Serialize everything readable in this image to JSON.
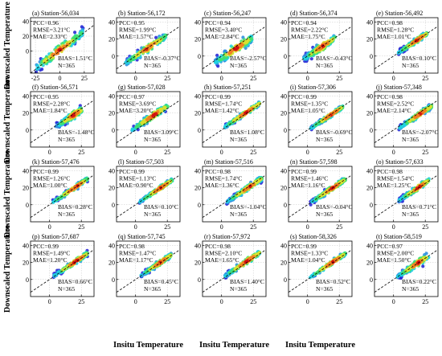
{
  "figure": {
    "x_label": "Insitu Temperature",
    "y_label": "Downscaled Temperature"
  },
  "colors": {
    "identity_line": "#000000",
    "density_scale": [
      "#2a2ad6",
      "#2f8fe0",
      "#20d0e0",
      "#40e070",
      "#d8e030",
      "#f08020",
      "#d01010"
    ]
  },
  "chart_data": [
    {
      "type": "scatter",
      "label": "(a) Station-56,034",
      "xlim": [
        -30,
        35
      ],
      "ylim": [
        -30,
        45
      ],
      "xticks": [
        -25,
        0,
        25
      ],
      "yticks": [
        0,
        20,
        40
      ],
      "stats": {
        "pcc": "PCC=0.96",
        "rmse": "RMSE=3.21°C",
        "mae": "MAE=2.33°C",
        "bias": "BIAS=1.51°C",
        "n": "N=365"
      },
      "cluster": {
        "x_range": [
          -25,
          24
        ],
        "bias": 1.51,
        "spread": 3.2
      }
    },
    {
      "type": "scatter",
      "label": "(b) Station-56,172",
      "xlim": [
        -15,
        35
      ],
      "ylim": [
        -20,
        45
      ],
      "xticks": [
        0,
        25
      ],
      "yticks": [
        0,
        20,
        40
      ],
      "stats": {
        "pcc": "PCC=0.95",
        "rmse": "RMSE=1.99°C",
        "mae": "MAE=1.57°C",
        "bias": "BIAS=-0.37°C",
        "n": "N=365"
      },
      "cluster": {
        "x_range": [
          -8,
          24
        ],
        "bias": -0.37,
        "spread": 2.0
      }
    },
    {
      "type": "scatter",
      "label": "(c) Station-56,247",
      "xlim": [
        -15,
        35
      ],
      "ylim": [
        -20,
        45
      ],
      "xticks": [
        0,
        25
      ],
      "yticks": [
        0,
        20,
        40
      ],
      "stats": {
        "pcc": "PCC=0.94",
        "rmse": "RMSE=3.40°C",
        "mae": "MAE=2.84°C",
        "bias": "BIAS=-2.57°C",
        "n": "N=365"
      },
      "cluster": {
        "x_range": [
          -5,
          24
        ],
        "bias": -2.57,
        "spread": 2.8
      }
    },
    {
      "type": "scatter",
      "label": "(d) Station-56,374",
      "xlim": [
        -15,
        35
      ],
      "ylim": [
        -20,
        45
      ],
      "xticks": [
        0,
        25
      ],
      "yticks": [
        0,
        20,
        40
      ],
      "stats": {
        "pcc": "PCC=0.94",
        "rmse": "RMSE=2.22°C",
        "mae": "MAE=1.75°C",
        "bias": "BIAS=-0.43°C",
        "n": "N=365"
      },
      "cluster": {
        "x_range": [
          -3,
          22
        ],
        "bias": -0.43,
        "spread": 2.2
      }
    },
    {
      "type": "scatter",
      "label": "(e) Station-56,492",
      "xlim": [
        -15,
        35
      ],
      "ylim": [
        -20,
        45
      ],
      "xticks": [
        0,
        25
      ],
      "yticks": [
        0,
        20,
        40
      ],
      "stats": {
        "pcc": "PCC=0.98",
        "rmse": "RMSE=1.28°C",
        "mae": "MAE=1.01°C",
        "bias": "BIAS=0.10°C",
        "n": "N=365"
      },
      "cluster": {
        "x_range": [
          3,
          27
        ],
        "bias": 0.1,
        "spread": 1.3
      }
    },
    {
      "type": "scatter",
      "label": "(f) Station-56,571",
      "xlim": [
        -15,
        35
      ],
      "ylim": [
        -20,
        45
      ],
      "xticks": [
        0,
        25
      ],
      "yticks": [
        0,
        20,
        40
      ],
      "stats": {
        "pcc": "PCC=0.95",
        "rmse": "RMSE=2.28°C",
        "mae": "MAE=1.84°C",
        "bias": "BIAS=-1.48°C",
        "n": "N=365"
      },
      "cluster": {
        "x_range": [
          5,
          26
        ],
        "bias": -1.48,
        "spread": 2.0
      }
    },
    {
      "type": "scatter",
      "label": "(g) Station-57,028",
      "xlim": [
        -15,
        35
      ],
      "ylim": [
        -20,
        45
      ],
      "xticks": [
        0,
        25
      ],
      "yticks": [
        0,
        20,
        40
      ],
      "stats": {
        "pcc": "PCC=0.97",
        "rmse": "RMSE=3.69°C",
        "mae": "MAE=3.20°C",
        "bias": "BIAS=3.09°C",
        "n": "N=365"
      },
      "cluster": {
        "x_range": [
          -3,
          26
        ],
        "bias": 3.09,
        "spread": 1.8
      }
    },
    {
      "type": "scatter",
      "label": "(h) Station-57,251",
      "xlim": [
        -15,
        35
      ],
      "ylim": [
        -20,
        45
      ],
      "xticks": [
        0,
        25
      ],
      "yticks": [
        0,
        20,
        40
      ],
      "stats": {
        "pcc": "PCC=0.99",
        "rmse": "RMSE=1.74°C",
        "mae": "MAE=1.42°C",
        "bias": "BIAS=1.08°C",
        "n": "N=365"
      },
      "cluster": {
        "x_range": [
          1,
          30
        ],
        "bias": 1.08,
        "spread": 1.2
      }
    },
    {
      "type": "scatter",
      "label": "(i) Station-57,306",
      "xlim": [
        -15,
        35
      ],
      "ylim": [
        -20,
        45
      ],
      "xticks": [
        0,
        25
      ],
      "yticks": [
        0,
        20,
        40
      ],
      "stats": {
        "pcc": "PCC=0.99",
        "rmse": "RMSE=1.35°C",
        "mae": "MAE=1.05°C",
        "bias": "BIAS=-0.69°C",
        "n": "N=365"
      },
      "cluster": {
        "x_range": [
          2,
          28
        ],
        "bias": -0.69,
        "spread": 1.1
      }
    },
    {
      "type": "scatter",
      "label": "(j) Station-57,348",
      "xlim": [
        -15,
        35
      ],
      "ylim": [
        -20,
        45
      ],
      "xticks": [
        0,
        25
      ],
      "yticks": [
        0,
        20,
        40
      ],
      "stats": {
        "pcc": "PCC=0.98",
        "rmse": "RMSE=2.52°C",
        "mae": "MAE=2.14°C",
        "bias": "BIAS=-2.07°C",
        "n": "N=365"
      },
      "cluster": {
        "x_range": [
          4,
          30
        ],
        "bias": -2.07,
        "spread": 1.4
      }
    },
    {
      "type": "scatter",
      "label": "(k) Station-57,476",
      "xlim": [
        -15,
        35
      ],
      "ylim": [
        -20,
        45
      ],
      "xticks": [
        0,
        25
      ],
      "yticks": [
        0,
        20,
        40
      ],
      "stats": {
        "pcc": "PCC=0.99",
        "rmse": "RMSE=1.26°C",
        "mae": "MAE=1.00°C",
        "bias": "BIAS=0.28°C",
        "n": "N=365"
      },
      "cluster": {
        "x_range": [
          2,
          30
        ],
        "bias": 0.28,
        "spread": 1.2
      }
    },
    {
      "type": "scatter",
      "label": "(l) Station-57,503",
      "xlim": [
        -15,
        35
      ],
      "ylim": [
        -20,
        45
      ],
      "xticks": [
        0,
        25
      ],
      "yticks": [
        0,
        20,
        40
      ],
      "stats": {
        "pcc": "PCC=0.99",
        "rmse": "RMSE=1.13°C",
        "mae": "MAE=0.90°C",
        "bias": "BIAS=0.10°C",
        "n": "N=365"
      },
      "cluster": {
        "x_range": [
          3,
          29
        ],
        "bias": 0.1,
        "spread": 1.1
      }
    },
    {
      "type": "scatter",
      "label": "(m) Station-57,516",
      "xlim": [
        -15,
        35
      ],
      "ylim": [
        -20,
        45
      ],
      "xticks": [
        0,
        25
      ],
      "yticks": [
        0,
        20,
        40
      ],
      "stats": {
        "pcc": "PCC=0.98",
        "rmse": "RMSE=1.74°C",
        "mae": "MAE=1.36°C",
        "bias": "BIAS=-1.04°C",
        "n": "N=365"
      },
      "cluster": {
        "x_range": [
          4,
          32
        ],
        "bias": -1.04,
        "spread": 1.4
      }
    },
    {
      "type": "scatter",
      "label": "(n) Station-57,598",
      "xlim": [
        -15,
        35
      ],
      "ylim": [
        -20,
        45
      ],
      "xticks": [
        0,
        25
      ],
      "yticks": [
        0,
        20,
        40
      ],
      "stats": {
        "pcc": "PCC=0.99",
        "rmse": "RMSE=1.46°C",
        "mae": "MAE=1.16°C",
        "bias": "BIAS=-0.04°C",
        "n": "N=365"
      },
      "cluster": {
        "x_range": [
          2,
          30
        ],
        "bias": -0.04,
        "spread": 1.4
      }
    },
    {
      "type": "scatter",
      "label": "(o) Station-57,633",
      "xlim": [
        -15,
        35
      ],
      "ylim": [
        -20,
        45
      ],
      "xticks": [
        0,
        25
      ],
      "yticks": [
        0,
        20,
        40
      ],
      "stats": {
        "pcc": "PCC=0.98",
        "rmse": "RMSE=1.54°C",
        "mae": "MAE=1.25°C",
        "bias": "BIAS=0.71°C",
        "n": "N=365"
      },
      "cluster": {
        "x_range": [
          4,
          28
        ],
        "bias": 0.71,
        "spread": 1.4
      }
    },
    {
      "type": "scatter",
      "label": "(p) Station-57,687",
      "xlim": [
        -15,
        35
      ],
      "ylim": [
        -20,
        45
      ],
      "xticks": [
        0,
        25
      ],
      "yticks": [
        0,
        20,
        40
      ],
      "stats": {
        "pcc": "PCC=0.99",
        "rmse": "RMSE=1.49°C",
        "mae": "MAE=1.20°C",
        "bias": "BIAS=0.66°C",
        "n": "N=365"
      },
      "cluster": {
        "x_range": [
          3,
          30
        ],
        "bias": 0.66,
        "spread": 1.4
      }
    },
    {
      "type": "scatter",
      "label": "(q) Station-57,745",
      "xlim": [
        -15,
        35
      ],
      "ylim": [
        -20,
        45
      ],
      "xticks": [
        0,
        25
      ],
      "yticks": [
        0,
        20,
        40
      ],
      "stats": {
        "pcc": "PCC=0.98",
        "rmse": "RMSE=1.47°C",
        "mae": "MAE=1.17°C",
        "bias": "BIAS=0.45°C",
        "n": "N=365"
      },
      "cluster": {
        "x_range": [
          4,
          28
        ],
        "bias": 0.45,
        "spread": 1.4
      }
    },
    {
      "type": "scatter",
      "label": "(r) Station-57,972",
      "xlim": [
        -15,
        35
      ],
      "ylim": [
        -20,
        45
      ],
      "xticks": [
        0,
        25
      ],
      "yticks": [
        0,
        20,
        40
      ],
      "stats": {
        "pcc": "PCC=0.98",
        "rmse": "RMSE=2.10°C",
        "mae": "MAE=1.65°C",
        "bias": "BIAS=1.40°C",
        "n": "N=365"
      },
      "cluster": {
        "x_range": [
          2,
          30
        ],
        "bias": 1.4,
        "spread": 1.6
      }
    },
    {
      "type": "scatter",
      "label": "(s) Station-58,326",
      "xlim": [
        -15,
        35
      ],
      "ylim": [
        -20,
        45
      ],
      "xticks": [
        0,
        25
      ],
      "yticks": [
        0,
        20,
        40
      ],
      "stats": {
        "pcc": "PCC=0.99",
        "rmse": "RMSE=1.33°C",
        "mae": "MAE=1.04°C",
        "bias": "BIAS=0.52°C",
        "n": "N=365"
      },
      "cluster": {
        "x_range": [
          2,
          30
        ],
        "bias": 0.52,
        "spread": 1.2
      }
    },
    {
      "type": "scatter",
      "label": "(t) Station-58,519",
      "xlim": [
        -15,
        35
      ],
      "ylim": [
        -20,
        45
      ],
      "xticks": [
        0,
        25
      ],
      "yticks": [
        0,
        20,
        40
      ],
      "stats": {
        "pcc": "PCC=0.97",
        "rmse": "RMSE=2.00°C",
        "mae": "MAE=1.50°C",
        "bias": "BIAS=0.22°C",
        "n": "N=365"
      },
      "cluster": {
        "x_range": [
          3,
          28
        ],
        "bias": 0.22,
        "spread": 1.9
      }
    }
  ]
}
